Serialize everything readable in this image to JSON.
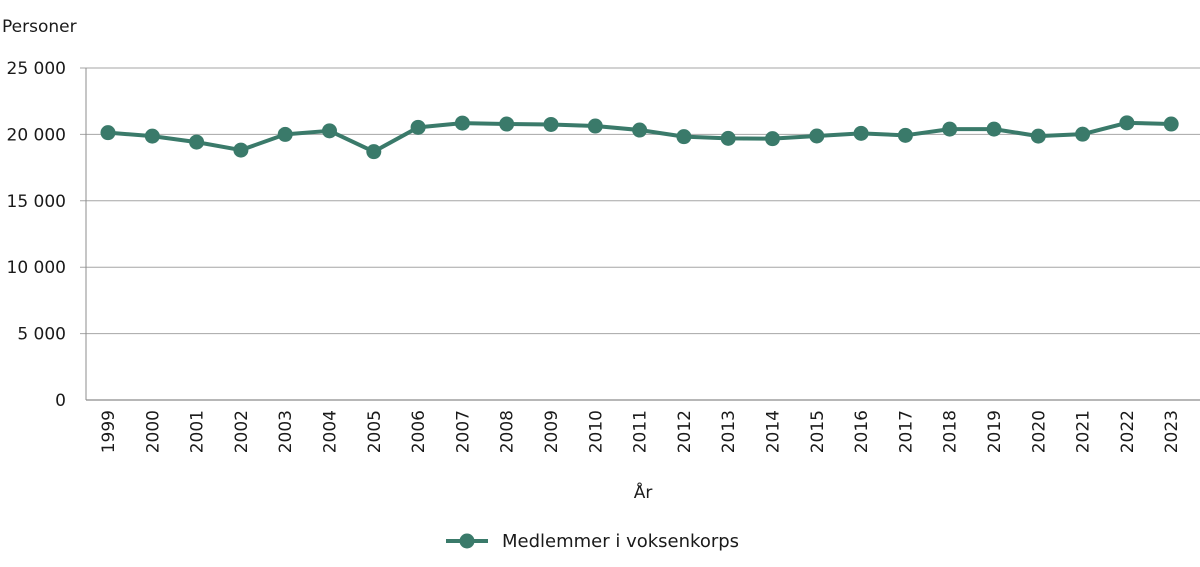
{
  "chart_data": {
    "type": "line",
    "title": "",
    "ylabel": "Personer",
    "xlabel": "År",
    "ylim": [
      0,
      25000
    ],
    "yticks": [
      0,
      5000,
      10000,
      15000,
      20000,
      25000
    ],
    "ytick_labels": [
      "0",
      "5 000",
      "10 000",
      "15 000",
      "20 000",
      "25 000"
    ],
    "grid": true,
    "legend_position": "bottom",
    "categories": [
      "1999",
      "2000",
      "2001",
      "2002",
      "2003",
      "2004",
      "2005",
      "2006",
      "2007",
      "2008",
      "2009",
      "2010",
      "2011",
      "2012",
      "2013",
      "2014",
      "2015",
      "2016",
      "2017",
      "2018",
      "2019",
      "2020",
      "2021",
      "2022",
      "2023"
    ],
    "series": [
      {
        "name": "Medlemmer i voksenkorps",
        "color": "#3a7a6a",
        "values": [
          20130,
          19870,
          19420,
          18820,
          20000,
          20270,
          18700,
          20530,
          20850,
          20780,
          20750,
          20630,
          20330,
          19830,
          19700,
          19680,
          19880,
          20080,
          19930,
          20400,
          20400,
          19870,
          20020,
          20870,
          20780
        ]
      }
    ]
  },
  "colors": {
    "series": "#3a7a6a",
    "grid": "#a6a6a6",
    "axis": "#8c8c8c"
  }
}
